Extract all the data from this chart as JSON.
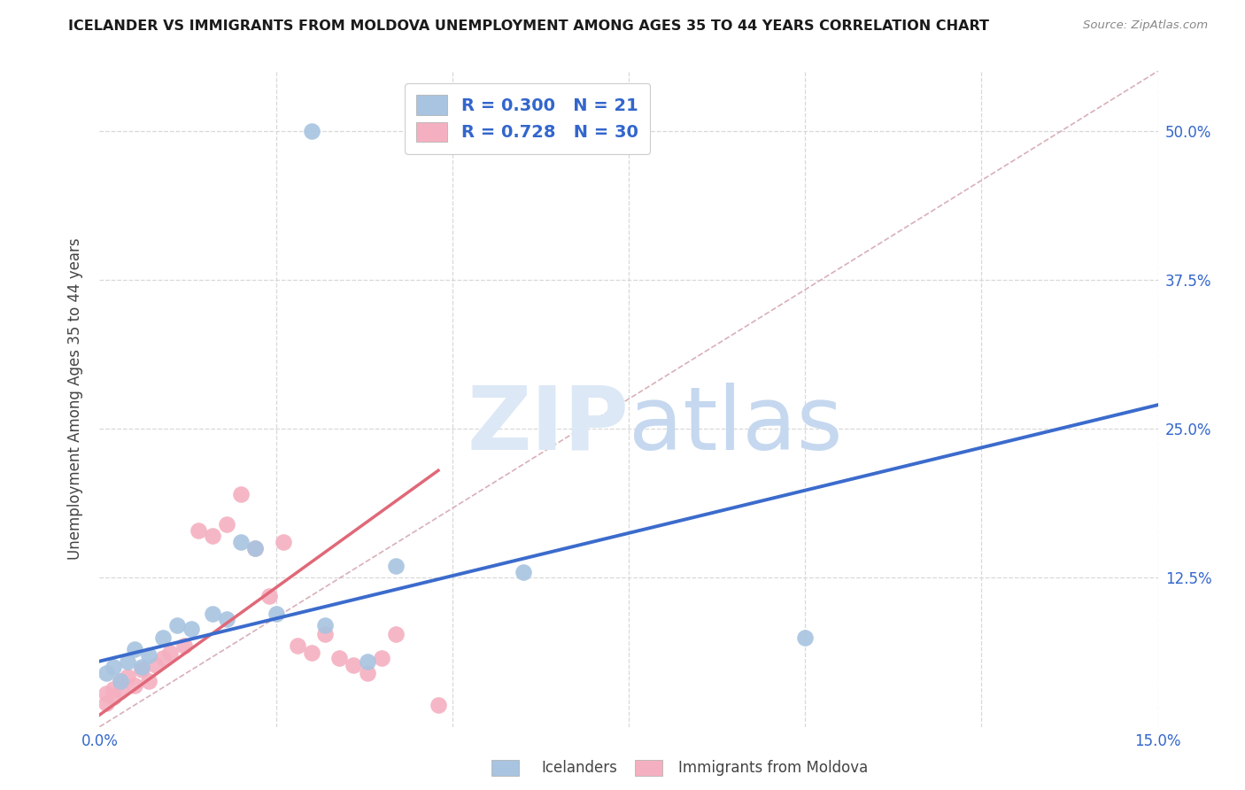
{
  "title": "ICELANDER VS IMMIGRANTS FROM MOLDOVA UNEMPLOYMENT AMONG AGES 35 TO 44 YEARS CORRELATION CHART",
  "source": "Source: ZipAtlas.com",
  "ylabel": "Unemployment Among Ages 35 to 44 years",
  "xmin": 0.0,
  "xmax": 0.15,
  "ymin": 0.0,
  "ymax": 0.55,
  "legend_r_blue": "0.300",
  "legend_n_blue": "21",
  "legend_r_pink": "0.728",
  "legend_n_pink": "30",
  "blue_scatter_x": [
    0.001,
    0.002,
    0.003,
    0.004,
    0.005,
    0.006,
    0.007,
    0.009,
    0.011,
    0.013,
    0.016,
    0.018,
    0.02,
    0.022,
    0.025,
    0.032,
    0.038,
    0.042,
    0.06,
    0.1,
    0.03
  ],
  "blue_scatter_y": [
    0.045,
    0.05,
    0.038,
    0.055,
    0.065,
    0.05,
    0.06,
    0.075,
    0.085,
    0.082,
    0.095,
    0.09,
    0.155,
    0.15,
    0.095,
    0.085,
    0.055,
    0.135,
    0.13,
    0.075,
    0.5
  ],
  "pink_scatter_x": [
    0.001,
    0.001,
    0.002,
    0.002,
    0.003,
    0.003,
    0.004,
    0.005,
    0.006,
    0.007,
    0.008,
    0.009,
    0.01,
    0.012,
    0.014,
    0.016,
    0.018,
    0.02,
    0.022,
    0.024,
    0.026,
    0.028,
    0.03,
    0.032,
    0.034,
    0.036,
    0.038,
    0.04,
    0.042,
    0.048
  ],
  "pink_scatter_y": [
    0.02,
    0.028,
    0.025,
    0.032,
    0.03,
    0.038,
    0.042,
    0.035,
    0.048,
    0.038,
    0.052,
    0.058,
    0.062,
    0.068,
    0.165,
    0.16,
    0.17,
    0.195,
    0.15,
    0.11,
    0.155,
    0.068,
    0.062,
    0.078,
    0.058,
    0.052,
    0.045,
    0.058,
    0.078,
    0.018
  ],
  "blue_line_x": [
    0.0,
    0.15
  ],
  "blue_line_y": [
    0.055,
    0.27
  ],
  "pink_line_x": [
    0.0,
    0.048
  ],
  "pink_line_y": [
    0.01,
    0.215
  ],
  "blue_color": "#a8c4e0",
  "blue_line_color": "#3b6bcc",
  "pink_color": "#f4b0c0",
  "pink_line_color": "#e06878",
  "diagonal_color": "#d8b0b8",
  "background_color": "#ffffff",
  "grid_color": "#d8d8d8"
}
